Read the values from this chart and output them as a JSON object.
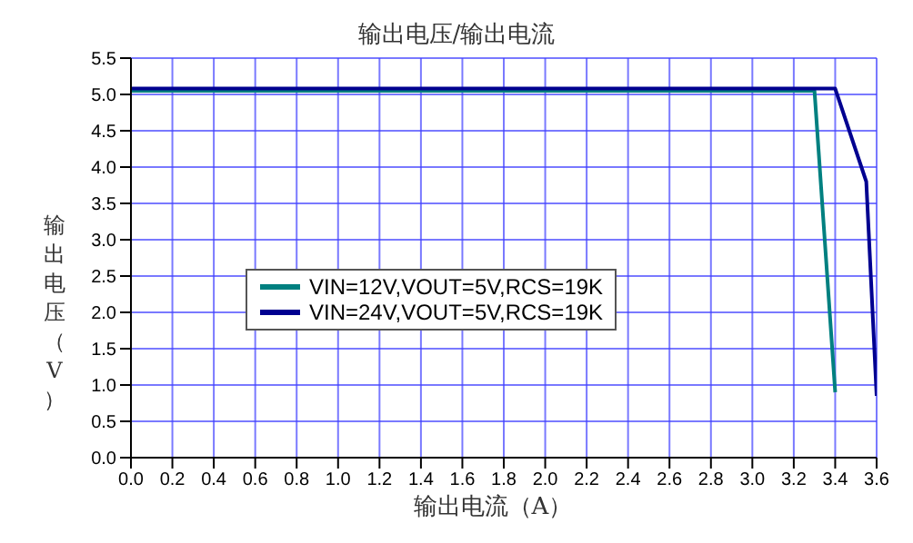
{
  "chart_data": {
    "type": "line",
    "title": "输出电压/输出电流",
    "xlabel": "输出电流（A）",
    "ylabel": "输出电压（V）",
    "series": [
      {
        "name": "VIN=12V,VOUT=5V,RCS=19K",
        "color": "#008080",
        "x": [
          0,
          3.3,
          3.4
        ],
        "values": [
          5.05,
          5.05,
          0.9
        ]
      },
      {
        "name": "VIN=24V,VOUT=5V,RCS=19K",
        "color": "#000090",
        "x": [
          0,
          3.4,
          3.55,
          3.6
        ],
        "values": [
          5.08,
          5.08,
          3.8,
          0.85
        ]
      }
    ],
    "xlim": [
      0,
      3.6
    ],
    "xticks": [
      {
        "value": 0,
        "label": "0.0"
      },
      0.2,
      0.4,
      0.6,
      0.8,
      {
        "value": 1,
        "label": "1.0"
      },
      1.2,
      1.4,
      1.6,
      1.8,
      {
        "value": 2,
        "label": "2.0"
      },
      2.2,
      2.4,
      2.6,
      2.8,
      {
        "value": 3,
        "label": "3.0"
      },
      3.2,
      3.4,
      3.6
    ],
    "ylim": [
      0,
      5.5
    ],
    "yticks": [
      {
        "value": 0,
        "label": "0.0"
      },
      0.5,
      {
        "value": 1,
        "label": "1.0"
      },
      1.5,
      {
        "value": 2,
        "label": "2.0"
      },
      2.5,
      {
        "value": 3,
        "label": "3.0"
      },
      3.5,
      {
        "value": 4,
        "label": "4.0"
      },
      4.5,
      {
        "value": 5,
        "label": "5.0"
      },
      5.5
    ],
    "grid": true,
    "legend": "left",
    "marker": "none",
    "line_style": "solid"
  }
}
